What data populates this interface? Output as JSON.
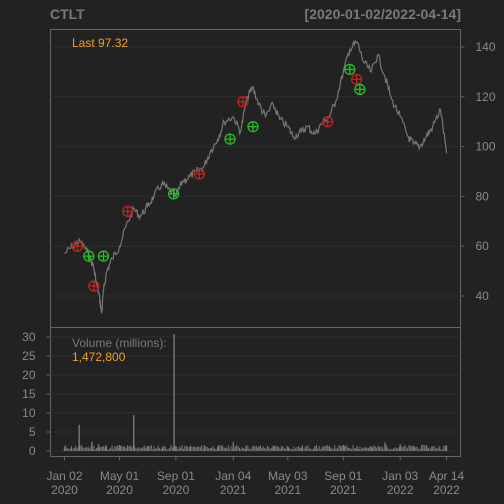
{
  "header": {
    "symbol": "CTLT",
    "range": "[2020-01-02/2022-04-14]"
  },
  "colors": {
    "background": "#222222",
    "panel_border": "#666666",
    "grid": "#2e2e2e",
    "price_line": "#777777",
    "volume_bars": "#7a7a7a",
    "label": "#f0a024",
    "buy_marker": "#22c322",
    "sell_marker": "#c32222"
  },
  "chart_data": [
    {
      "type": "line",
      "name": "price",
      "title": "CTLT",
      "date_range": "[2020-01-02/2022-04-14]",
      "annotation": {
        "label": "Last",
        "value": "97.32"
      },
      "ylim": [
        30,
        145
      ],
      "y_ticks": [
        40,
        60,
        80,
        100,
        120,
        140
      ],
      "y_tick_labels": [
        "40",
        "60",
        "80",
        "100",
        "120",
        "140"
      ],
      "axis_side": "right",
      "grid": true,
      "x": [
        "2020-01-02",
        "2020-01-20",
        "2020-02-05",
        "2020-02-20",
        "2020-03-05",
        "2020-03-12",
        "2020-03-18",
        "2020-03-23",
        "2020-03-27",
        "2020-04-03",
        "2020-04-15",
        "2020-05-01",
        "2020-05-15",
        "2020-06-01",
        "2020-06-15",
        "2020-07-01",
        "2020-07-15",
        "2020-08-01",
        "2020-08-15",
        "2020-09-01",
        "2020-09-15",
        "2020-10-01",
        "2020-10-15",
        "2020-11-01",
        "2020-11-15",
        "2020-12-01",
        "2020-12-15",
        "2021-01-04",
        "2021-01-20",
        "2021-02-01",
        "2021-02-15",
        "2021-03-01",
        "2021-03-15",
        "2021-04-01",
        "2021-04-15",
        "2021-05-03",
        "2021-05-15",
        "2021-06-01",
        "2021-06-15",
        "2021-07-01",
        "2021-07-15",
        "2021-08-01",
        "2021-08-15",
        "2021-09-01",
        "2021-09-15",
        "2021-10-01",
        "2021-10-15",
        "2021-11-01",
        "2021-11-15",
        "2021-12-01",
        "2021-12-15",
        "2022-01-03",
        "2022-01-20",
        "2022-02-01",
        "2022-02-15",
        "2022-03-01",
        "2022-03-15",
        "2022-04-01",
        "2022-04-14"
      ],
      "values": [
        57,
        60,
        62,
        58,
        52,
        45,
        40,
        33,
        42,
        50,
        55,
        60,
        68,
        75,
        72,
        76,
        80,
        85,
        83,
        80,
        86,
        88,
        90,
        92,
        98,
        103,
        110,
        112,
        106,
        118,
        124,
        117,
        112,
        117,
        111,
        108,
        104,
        106,
        108,
        105,
        109,
        112,
        118,
        130,
        139,
        142,
        134,
        130,
        137,
        128,
        119,
        112,
        104,
        101,
        100,
        104,
        108,
        115,
        97.32
      ]
    },
    {
      "type": "scatter",
      "name": "buy-signals",
      "marker": "circle-plus",
      "x": [
        "2020-02-24",
        "2020-03-27",
        "2020-08-27",
        "2020-12-28",
        "2021-02-16",
        "2021-09-15",
        "2021-10-07"
      ],
      "values": [
        56,
        56,
        81,
        103,
        108,
        131,
        123
      ]
    },
    {
      "type": "scatter",
      "name": "sell-signals",
      "marker": "circle-plus",
      "x": [
        "2020-01-30",
        "2020-03-06",
        "2020-05-19",
        "2020-10-22",
        "2021-01-25",
        "2021-07-29",
        "2021-09-30"
      ],
      "values": [
        60,
        44,
        74,
        89,
        118,
        110,
        127
      ]
    },
    {
      "type": "bar",
      "name": "volume",
      "label": "Volume (millions):",
      "last_value": "1,472,800",
      "ylim": [
        0,
        31
      ],
      "y_ticks": [
        0,
        5,
        10,
        15,
        20,
        25,
        30
      ],
      "y_tick_labels": [
        "0",
        "5",
        "10",
        "15",
        "20",
        "25",
        "30"
      ],
      "axis_side": "left",
      "x": [
        "2020-01-02",
        "2020-02-03",
        "2020-03-02",
        "2020-03-16",
        "2020-04-01",
        "2020-05-01",
        "2020-06-01",
        "2020-07-01",
        "2020-08-03",
        "2020-08-28",
        "2020-09-01",
        "2020-10-01",
        "2020-11-02",
        "2020-12-01",
        "2021-01-04",
        "2021-02-01",
        "2021-03-01",
        "2021-04-01",
        "2021-05-03",
        "2021-06-01",
        "2021-07-01",
        "2021-08-02",
        "2021-09-01",
        "2021-10-01",
        "2021-11-01",
        "2021-12-01",
        "2022-01-03",
        "2022-02-01",
        "2022-03-01",
        "2022-04-14"
      ],
      "values": [
        1.0,
        6.9,
        2.5,
        1.8,
        1.4,
        1.6,
        9.4,
        1.3,
        1.1,
        30.8,
        1.3,
        1.0,
        1.5,
        1.1,
        2.3,
        1.4,
        1.2,
        1.2,
        1.1,
        1.0,
        1.3,
        1.2,
        1.6,
        1.3,
        1.1,
        2.2,
        1.8,
        1.4,
        1.5,
        1.47
      ]
    }
  ],
  "x_axis": {
    "labels": [
      {
        "date": "2020-01-02",
        "line1": "Jan 02",
        "line2": "2020"
      },
      {
        "date": "2020-05-01",
        "line1": "May 01",
        "line2": "2020"
      },
      {
        "date": "2020-09-01",
        "line1": "Sep 01",
        "line2": "2020"
      },
      {
        "date": "2021-01-04",
        "line1": "Jan 04",
        "line2": "2021"
      },
      {
        "date": "2021-05-03",
        "line1": "May 03",
        "line2": "2021"
      },
      {
        "date": "2021-09-01",
        "line1": "Sep 01",
        "line2": "2021"
      },
      {
        "date": "2022-01-03",
        "line1": "Jan 03",
        "line2": "2022"
      },
      {
        "date": "2022-04-14",
        "line1": "Apr 14",
        "line2": "2022"
      }
    ]
  }
}
